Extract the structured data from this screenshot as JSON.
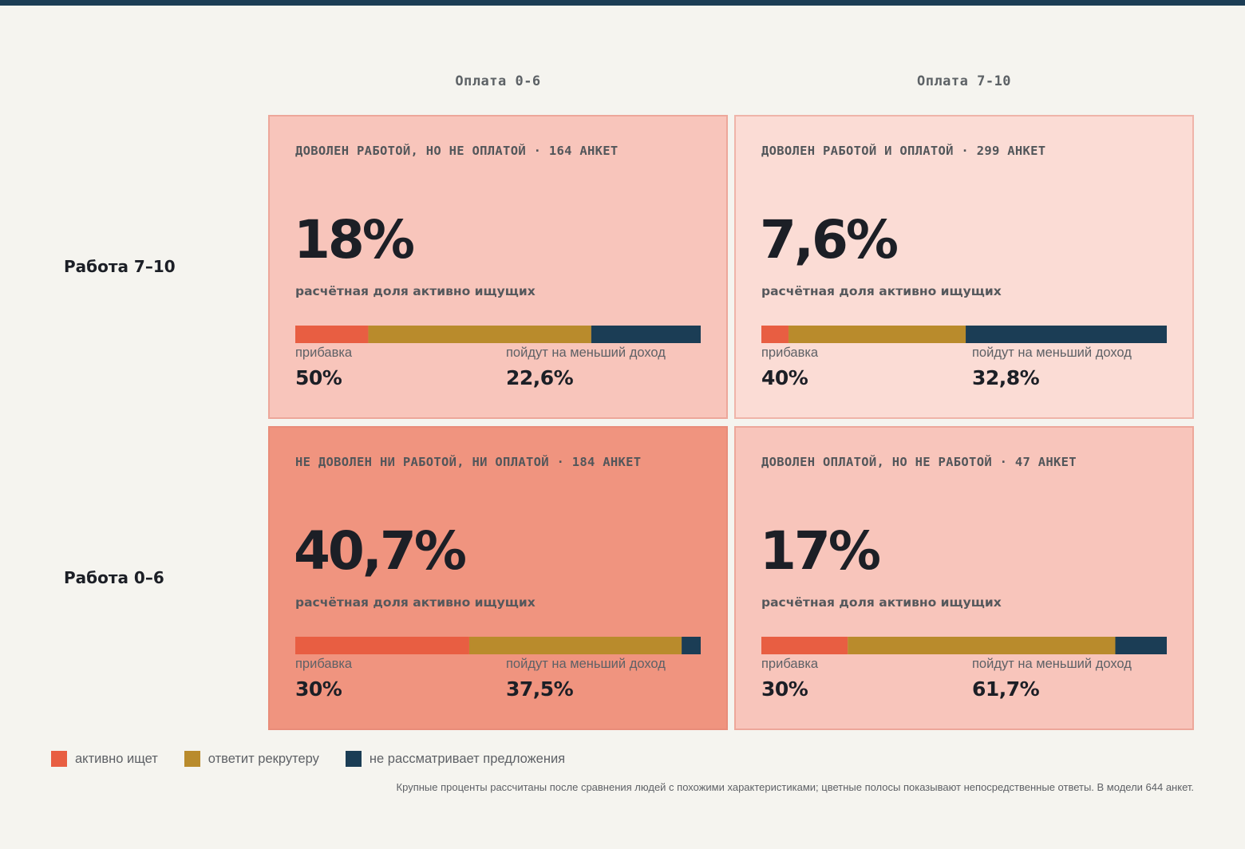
{
  "colors": {
    "active": "#e85e42",
    "recruiter": "#b98b2c",
    "not_considering": "#1b3d55",
    "cell_low": "#fbdcd5",
    "cell_mid": "#f8c5bb",
    "cell_high": "#f0947f"
  },
  "chart_data": {
    "type": "bar",
    "columns": [
      "Оплата 0-6",
      "Оплата 7-10"
    ],
    "rows": [
      "Работа 7–10",
      "Работа 0–6"
    ],
    "metric_caption": "расчётная доля активно ищущих",
    "raise_label": "прибавка",
    "lower_income_label": "пойдут на меньший доход",
    "series": [
      {
        "name": "активно ищет",
        "key": "active"
      },
      {
        "name": "ответит рекрутеру",
        "key": "recruiter"
      },
      {
        "name": "не рассматривает предложения",
        "key": "not_considering"
      }
    ],
    "cells": [
      {
        "title": "ДОВОЛЕН РАБОТОЙ, НО НЕ ОПЛАТОЙ · 164 АНКЕТ",
        "big": "18%",
        "bar": [
          18,
          55,
          27
        ],
        "raise": "50%",
        "lower_income": "22,6%",
        "shade": "cell_mid"
      },
      {
        "title": "ДОВОЛЕН РАБОТОЙ И ОПЛАТОЙ · 299 АНКЕТ",
        "big": "7,6%",
        "bar": [
          6.7,
          43.7,
          49.6
        ],
        "raise": "40%",
        "lower_income": "32,8%",
        "shade": "cell_low"
      },
      {
        "title": "НЕ ДОВОЛЕН НИ РАБОТОЙ, НИ ОПЛАТОЙ · 184 АНКЕТ",
        "big": "40,7%",
        "bar": [
          42.9,
          52.4,
          4.7
        ],
        "raise": "30%",
        "lower_income": "37,5%",
        "shade": "cell_high"
      },
      {
        "title": "ДОВОЛЕН ОПЛАТОЙ, НО НЕ РАБОТОЙ · 47 АНКЕТ",
        "big": "17%",
        "bar": [
          21.3,
          66.0,
          12.7
        ],
        "raise": "30%",
        "lower_income": "61,7%",
        "shade": "cell_mid"
      }
    ],
    "legend_placement": "bottom-left"
  },
  "footnote": "Крупные проценты рассчитаны после сравнения людей с похожими характеристиками; цветные полосы показывают непосредственные ответы. В модели 644 анкет."
}
